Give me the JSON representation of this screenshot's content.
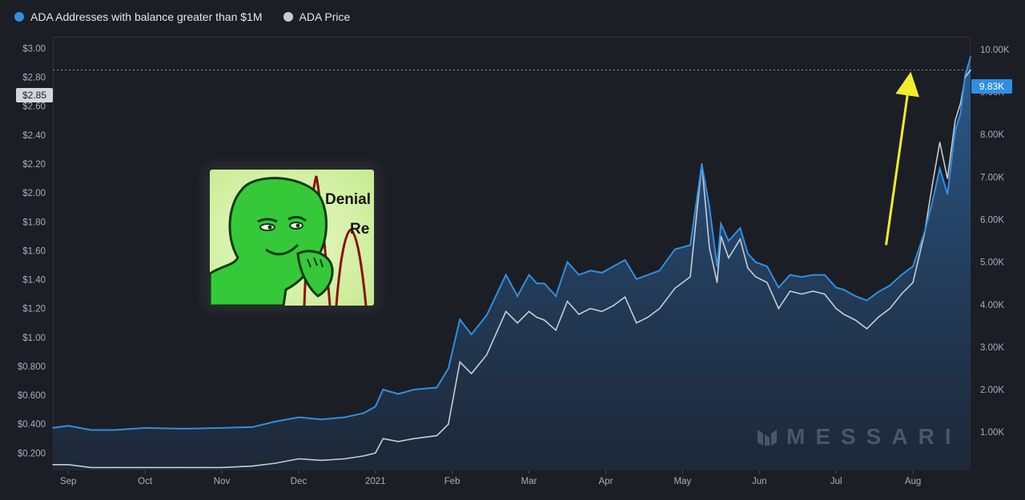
{
  "legend": {
    "series1_label": "ADA Addresses with balance greater than $1M",
    "series2_label": "ADA Price"
  },
  "colors": {
    "series1": "#2f8fe0",
    "series2": "#c8ccd2",
    "background": "#1c1e25",
    "arrow": "#f2ec2a"
  },
  "price_tag": "$2.85",
  "value_tag": "9.83K",
  "watermark": "MESSARI",
  "meme_text": {
    "line1": "Denial",
    "line2": "Re"
  },
  "chart_data": {
    "type": "area",
    "left_axis": {
      "ticks": [
        "$0.200",
        "$0.400",
        "$0.600",
        "$0.800",
        "$1.00",
        "$1.20",
        "$1.40",
        "$1.60",
        "$1.80",
        "$2.00",
        "$2.20",
        "$2.40",
        "$2.60",
        "$2.80",
        "$3.00"
      ],
      "values": [
        0.2,
        0.4,
        0.6,
        0.8,
        1.0,
        1.2,
        1.4,
        1.6,
        1.8,
        2.0,
        2.2,
        2.4,
        2.6,
        2.8,
        3.0
      ],
      "ylim": [
        0.08,
        3.08
      ]
    },
    "right_axis": {
      "ticks": [
        "1.00K",
        "2.00K",
        "3.00K",
        "4.00K",
        "5.00K",
        "6.00K",
        "7.00K",
        "8.00K",
        "9.00K",
        "10.00K"
      ],
      "values": [
        1000,
        2000,
        3000,
        4000,
        5000,
        6000,
        7000,
        8000,
        9000,
        10000
      ],
      "ylim": [
        100,
        10300
      ]
    },
    "x_axis": {
      "ticks": [
        "Sep",
        "Oct",
        "Nov",
        "Dec",
        "2021",
        "Feb",
        "Mar",
        "Apr",
        "May",
        "Jun",
        "Jul",
        "Aug"
      ],
      "positions": [
        1,
        2,
        3,
        4,
        5,
        6,
        7,
        8,
        9,
        10,
        11,
        12
      ],
      "xlim": [
        0.8,
        12.75
      ]
    },
    "series": [
      {
        "name": "ADA Addresses with balance greater than $1M",
        "axis": "right",
        "x": [
          0.8,
          1.0,
          1.3,
          1.6,
          2.0,
          2.5,
          3.0,
          3.4,
          3.7,
          4.0,
          4.3,
          4.6,
          4.85,
          5.0,
          5.1,
          5.3,
          5.5,
          5.8,
          5.95,
          6.1,
          6.25,
          6.45,
          6.7,
          6.85,
          7.0,
          7.1,
          7.2,
          7.35,
          7.5,
          7.65,
          7.8,
          7.95,
          8.1,
          8.25,
          8.4,
          8.55,
          8.7,
          8.9,
          9.1,
          9.25,
          9.35,
          9.45,
          9.5,
          9.6,
          9.75,
          9.85,
          9.95,
          10.1,
          10.25,
          10.4,
          10.55,
          10.7,
          10.85,
          11.0,
          11.1,
          11.25,
          11.4,
          11.55,
          11.7,
          11.85,
          12.0,
          12.15,
          12.25,
          12.35,
          12.45,
          12.55,
          12.62,
          12.68,
          12.75
        ],
        "y": [
          1100,
          1150,
          1050,
          1050,
          1100,
          1080,
          1100,
          1120,
          1250,
          1350,
          1300,
          1350,
          1450,
          1600,
          2000,
          1900,
          2000,
          2050,
          2500,
          3650,
          3300,
          3750,
          4700,
          4200,
          4700,
          4500,
          4500,
          4200,
          5000,
          4700,
          4800,
          4750,
          4900,
          5050,
          4600,
          4700,
          4800,
          5300,
          5400,
          7300,
          6300,
          4900,
          5900,
          5500,
          5800,
          5200,
          5000,
          4900,
          4400,
          4700,
          4650,
          4700,
          4700,
          4400,
          4350,
          4200,
          4100,
          4300,
          4450,
          4700,
          4900,
          5700,
          6400,
          7200,
          6600,
          8100,
          8500,
          9400,
          9830
        ]
      },
      {
        "name": "ADA Price",
        "axis": "left",
        "x": [
          0.8,
          1.0,
          1.3,
          1.6,
          2.0,
          2.5,
          3.0,
          3.4,
          3.7,
          4.0,
          4.3,
          4.6,
          4.85,
          5.0,
          5.1,
          5.3,
          5.5,
          5.8,
          5.95,
          6.1,
          6.25,
          6.45,
          6.7,
          6.85,
          7.0,
          7.1,
          7.2,
          7.35,
          7.5,
          7.65,
          7.8,
          7.95,
          8.1,
          8.25,
          8.4,
          8.55,
          8.7,
          8.9,
          9.1,
          9.25,
          9.35,
          9.45,
          9.5,
          9.6,
          9.75,
          9.85,
          9.95,
          10.1,
          10.25,
          10.4,
          10.55,
          10.7,
          10.85,
          11.0,
          11.1,
          11.25,
          11.4,
          11.55,
          11.7,
          11.85,
          12.0,
          12.15,
          12.25,
          12.35,
          12.45,
          12.55,
          12.62,
          12.68,
          12.75
        ],
        "y": [
          0.12,
          0.12,
          0.1,
          0.1,
          0.1,
          0.1,
          0.1,
          0.11,
          0.13,
          0.16,
          0.15,
          0.16,
          0.18,
          0.2,
          0.3,
          0.28,
          0.3,
          0.32,
          0.4,
          0.83,
          0.75,
          0.88,
          1.18,
          1.1,
          1.18,
          1.14,
          1.12,
          1.05,
          1.25,
          1.16,
          1.2,
          1.18,
          1.22,
          1.28,
          1.1,
          1.14,
          1.2,
          1.34,
          1.42,
          2.2,
          1.62,
          1.38,
          1.7,
          1.55,
          1.68,
          1.48,
          1.42,
          1.38,
          1.2,
          1.32,
          1.3,
          1.32,
          1.3,
          1.2,
          1.16,
          1.12,
          1.06,
          1.14,
          1.2,
          1.3,
          1.38,
          1.72,
          2.05,
          2.35,
          2.1,
          2.5,
          2.62,
          2.8,
          2.85
        ]
      }
    ],
    "annotations": [
      {
        "type": "arrow",
        "from": [
          11.65,
          5400
        ],
        "to": [
          11.95,
          9200
        ]
      }
    ]
  }
}
